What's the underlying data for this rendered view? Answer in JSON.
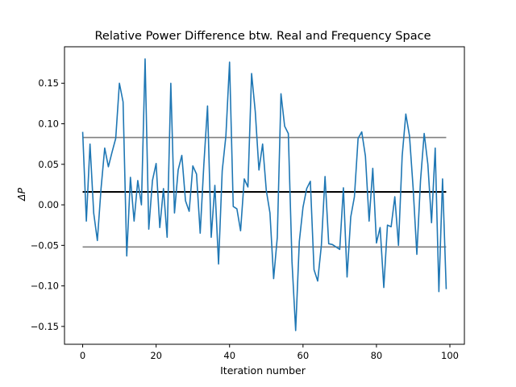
{
  "chart_data": {
    "type": "line",
    "title": "Relative Power Difference btw. Real and Frequency Space",
    "xlabel": "Iteration number",
    "ylabel": "ΔP",
    "xlim": [
      -4.95,
      103.95
    ],
    "ylim": [
      -0.172,
      0.195
    ],
    "xticks": [
      0,
      20,
      40,
      60,
      80,
      100
    ],
    "xtick_labels": [
      "0",
      "20",
      "40",
      "60",
      "80",
      "100"
    ],
    "yticks": [
      -0.15,
      -0.1,
      -0.05,
      0.0,
      0.05,
      0.1,
      0.15
    ],
    "ytick_labels": [
      "−0.15",
      "−0.10",
      "−0.05",
      "0.00",
      "0.05",
      "0.10",
      "0.15"
    ],
    "grid": false,
    "series": [
      {
        "color": "#1f77b4",
        "x": [
          0,
          1,
          2,
          3,
          4,
          5,
          6,
          7,
          8,
          9,
          10,
          11,
          12,
          13,
          14,
          15,
          16,
          17,
          18,
          19,
          20,
          21,
          22,
          23,
          24,
          25,
          26,
          27,
          28,
          29,
          30,
          31,
          32,
          33,
          34,
          35,
          36,
          37,
          38,
          39,
          40,
          41,
          42,
          43,
          44,
          45,
          46,
          47,
          48,
          49,
          50,
          51,
          52,
          53,
          54,
          55,
          56,
          57,
          58,
          59,
          60,
          61,
          62,
          63,
          64,
          65,
          66,
          67,
          68,
          69,
          70,
          71,
          72,
          73,
          74,
          75,
          76,
          77,
          78,
          79,
          80,
          81,
          82,
          83,
          84,
          85,
          86,
          87,
          88,
          89,
          90,
          91,
          92,
          93,
          94,
          95,
          96,
          97,
          98,
          99
        ],
        "y": [
          0.09,
          -0.02,
          0.075,
          -0.01,
          -0.044,
          0.02,
          0.07,
          0.047,
          0.065,
          0.082,
          0.15,
          0.127,
          -0.063,
          0.034,
          -0.02,
          0.03,
          0.0,
          0.18,
          -0.03,
          0.03,
          0.051,
          -0.028,
          0.02,
          -0.04,
          0.15,
          -0.01,
          0.043,
          0.061,
          0.005,
          -0.008,
          0.048,
          0.038,
          -0.035,
          0.05,
          0.122,
          -0.04,
          0.024,
          -0.073,
          0.042,
          0.085,
          0.176,
          -0.002,
          -0.005,
          -0.032,
          0.032,
          0.022,
          0.162,
          0.115,
          0.043,
          0.075,
          0.018,
          -0.01,
          -0.091,
          -0.04,
          0.137,
          0.097,
          0.088,
          -0.07,
          -0.155,
          -0.045,
          -0.003,
          0.02,
          0.029,
          -0.08,
          -0.094,
          -0.05,
          0.035,
          -0.048,
          -0.049,
          -0.052,
          -0.055,
          0.021,
          -0.089,
          -0.015,
          0.01,
          0.082,
          0.09,
          0.06,
          -0.02,
          0.045,
          -0.047,
          -0.028,
          -0.102,
          -0.025,
          -0.027,
          0.01,
          -0.05,
          0.06,
          0.112,
          0.085,
          0.02,
          -0.061,
          0.03,
          0.088,
          0.05,
          -0.022,
          0.07,
          -0.107,
          0.032,
          -0.104
        ]
      }
    ],
    "hlines": [
      {
        "y": 0.016,
        "color": "#000000",
        "xmin": 0,
        "xmax": 99
      },
      {
        "y": 0.083,
        "color": "#808080",
        "xmin": 0,
        "xmax": 99
      },
      {
        "y": -0.052,
        "color": "#808080",
        "xmin": 0,
        "xmax": 99
      }
    ]
  }
}
